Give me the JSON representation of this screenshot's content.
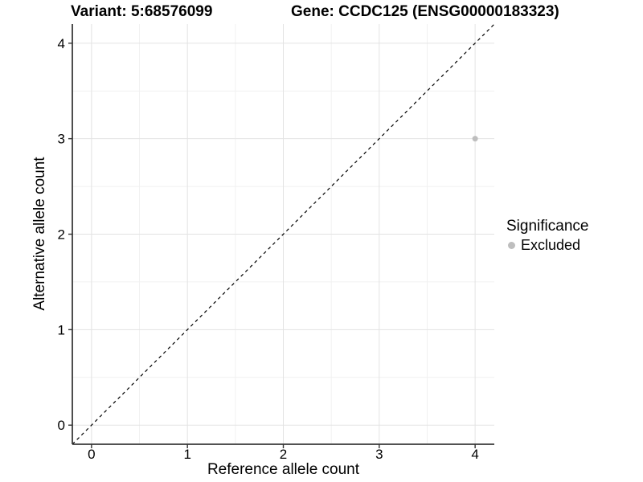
{
  "chart_data": {
    "type": "scatter",
    "titles": {
      "left": "Variant: 5:68576099",
      "right": "Gene: CCDC125 (ENSG00000183323)"
    },
    "xlabel": "Reference allele count",
    "ylabel": "Alternative allele count",
    "xlim": [
      -0.2,
      4.2
    ],
    "ylim": [
      -0.2,
      4.2
    ],
    "xticks": [
      0,
      1,
      2,
      3,
      4
    ],
    "yticks": [
      0,
      1,
      2,
      3,
      4
    ],
    "xminor": [
      0.5,
      1.5,
      2.5,
      3.5
    ],
    "yminor": [
      0.5,
      1.5,
      2.5,
      3.5
    ],
    "identity_line": {
      "style": "dashed",
      "color": "#000000",
      "x1": -0.2,
      "y1": -0.2,
      "x2": 4.2,
      "y2": 4.2
    },
    "series": [
      {
        "name": "Excluded",
        "color": "#bebebe",
        "points": [
          {
            "x": 4,
            "y": 3
          }
        ]
      }
    ],
    "legend": {
      "position": "right",
      "title": "Significance",
      "items": [
        {
          "label": "Excluded",
          "color": "#bebebe"
        }
      ]
    },
    "colors": {
      "background": "#ffffff",
      "grid_major": "#e3e3e3",
      "grid_minor": "#f1f1f1",
      "axis_line": "#3a3a3a",
      "tick_mark": "#333333",
      "tick_label": "#000000"
    },
    "grid": true
  }
}
